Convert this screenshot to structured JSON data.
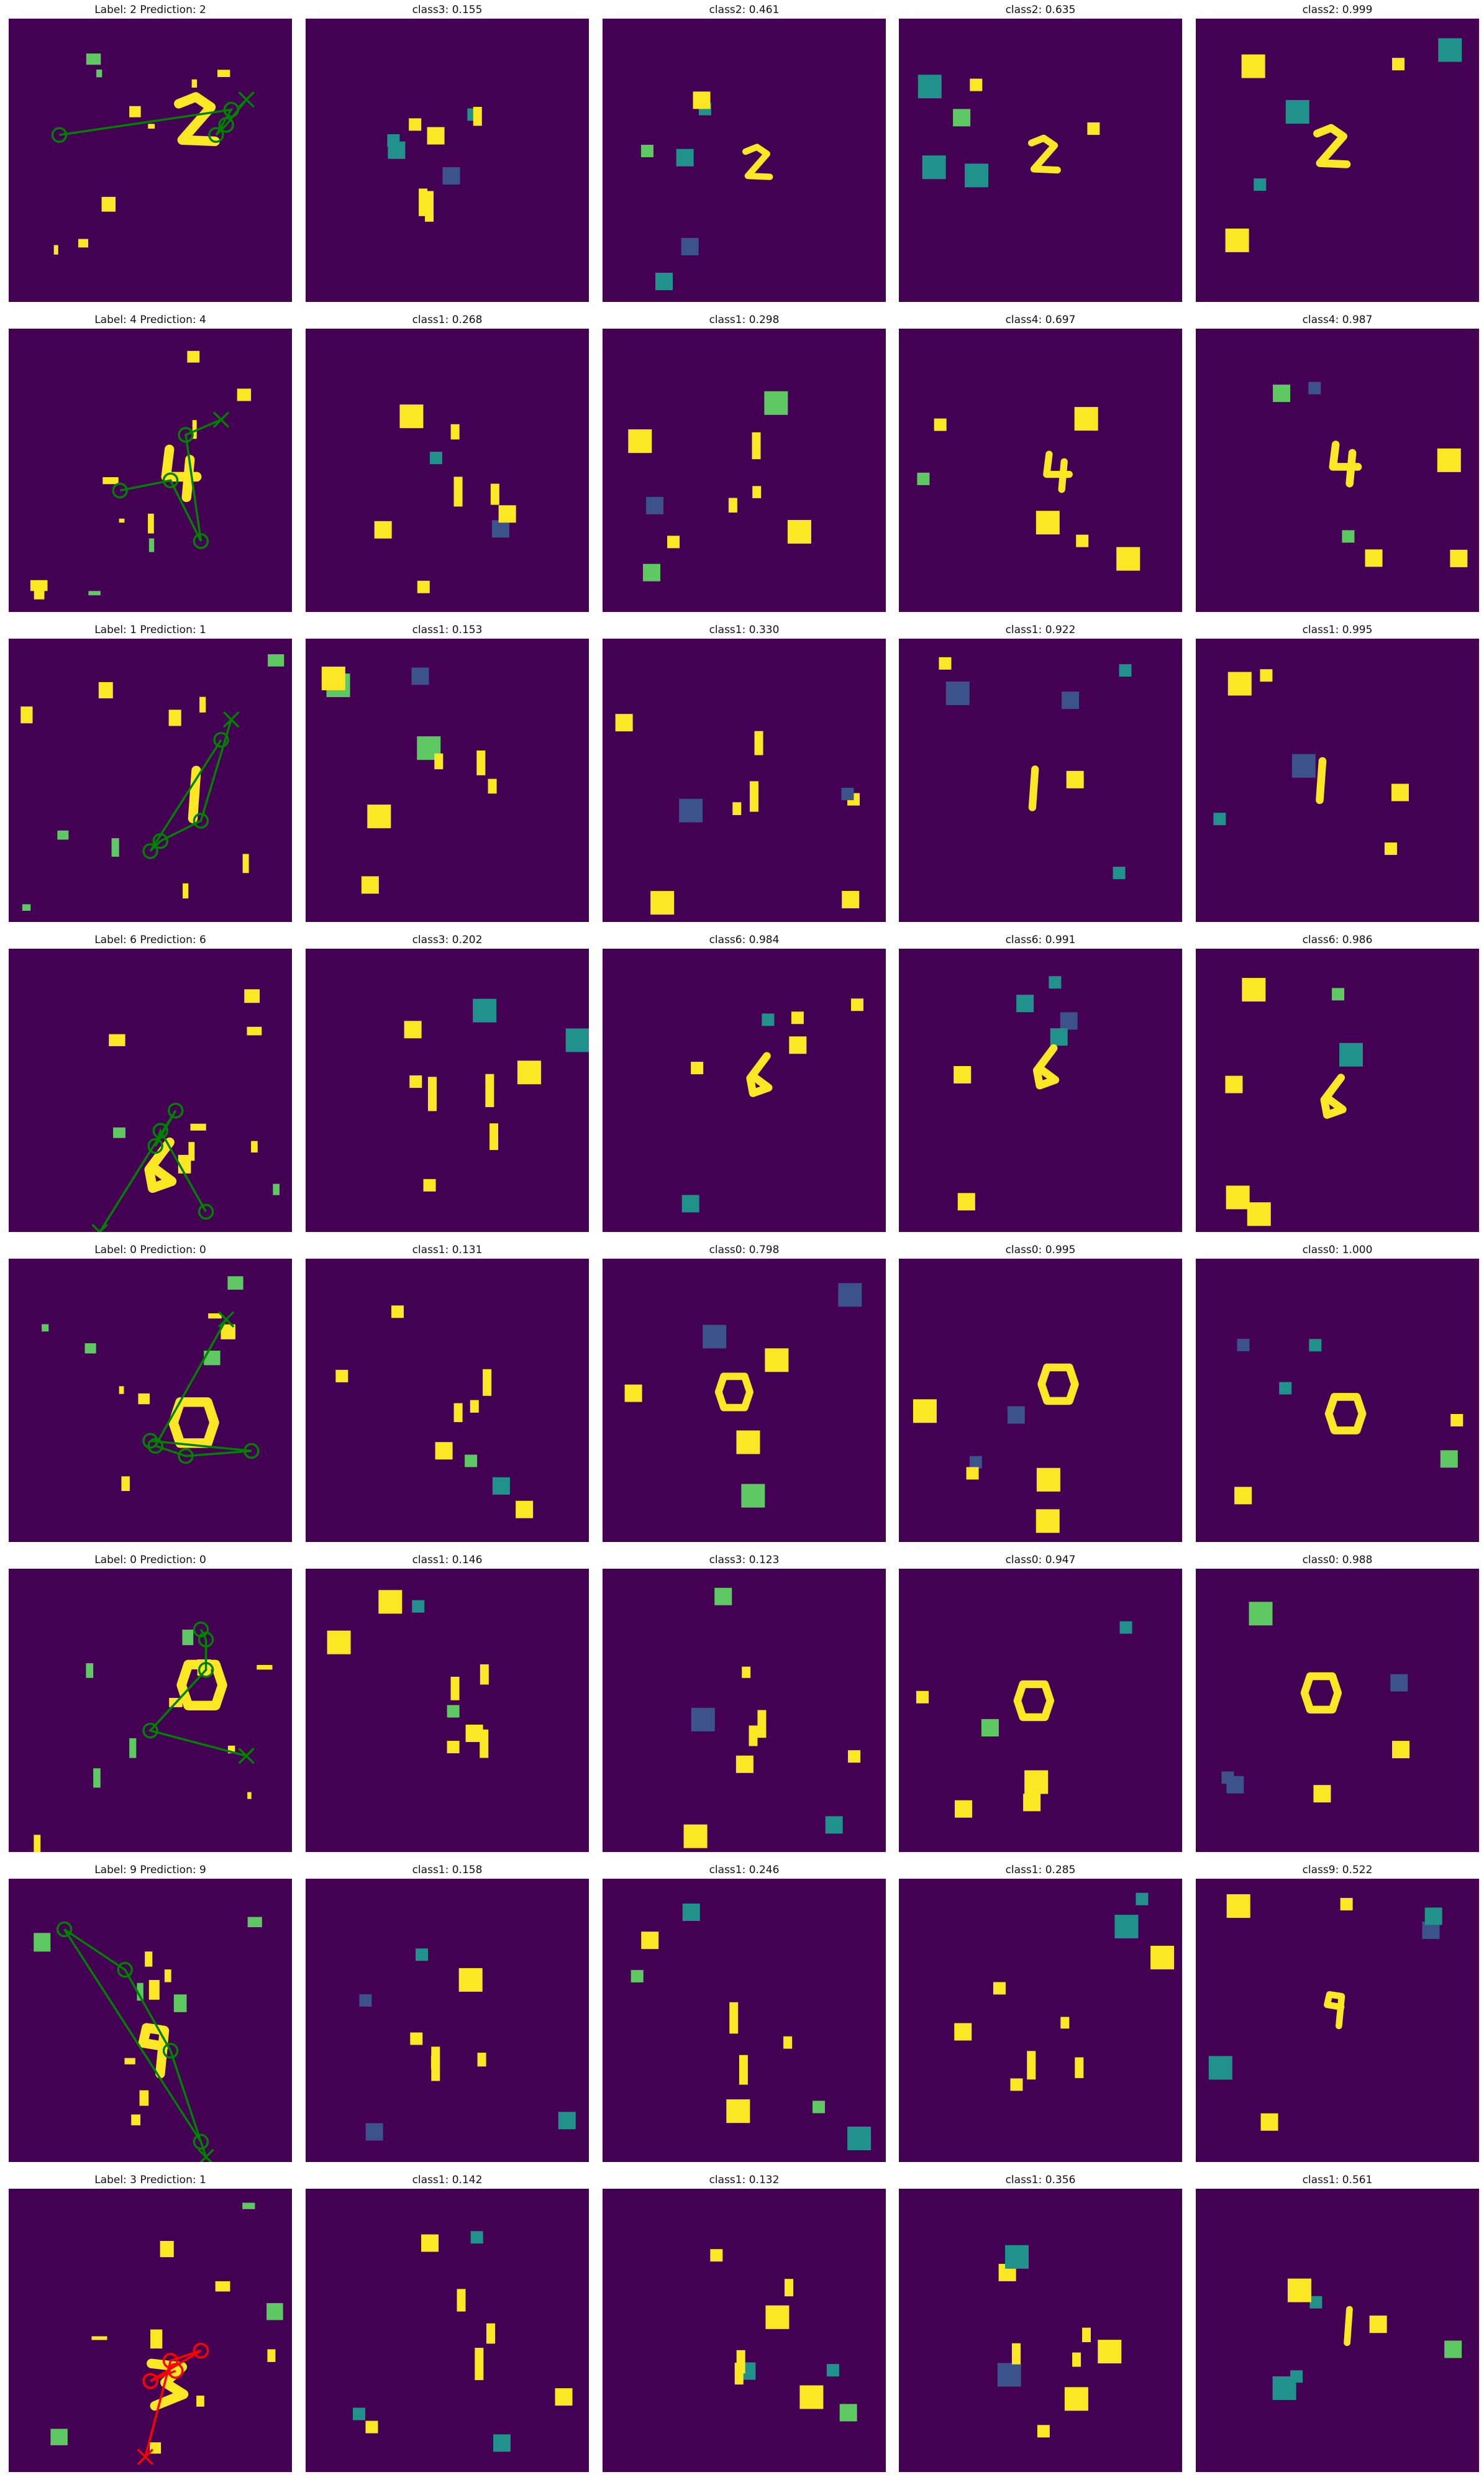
{
  "figure": {
    "background": "#ffffff",
    "colormap": {
      "low": "#440154",
      "mid_low": "#3b528b",
      "mid": "#21918c",
      "mid_high": "#5ec962",
      "high": "#fde725"
    },
    "path_colors": {
      "correct": "#008000",
      "incorrect": "#ff0000"
    }
  },
  "chart_data": {
    "type": "image-grid",
    "description_units": "glimpse images on 0-28 pixel grid; path points in same units",
    "rows": [
      {
        "label": 2,
        "prediction": 2,
        "correct": true,
        "title": "Label: 2 Prediction: 2",
        "path": [
          [
            23.5,
            8.0
          ],
          [
            21.5,
            10.5
          ],
          [
            20.5,
            11.5
          ],
          [
            22.0,
            9.0
          ],
          [
            5.0,
            11.5
          ]
        ],
        "glimpses": [
          {
            "title": "class3: 0.155",
            "cls": "class3",
            "prob": 0.155
          },
          {
            "title": "class2: 0.461",
            "cls": "class2",
            "prob": 0.461
          },
          {
            "title": "class2: 0.635",
            "cls": "class2",
            "prob": 0.635
          },
          {
            "title": "class2: 0.999",
            "cls": "class2",
            "prob": 0.999
          }
        ]
      },
      {
        "label": 4,
        "prediction": 4,
        "correct": true,
        "title": "Label: 4 Prediction: 4",
        "path": [
          [
            21.0,
            9.0
          ],
          [
            17.5,
            10.5
          ],
          [
            19.0,
            21.0
          ],
          [
            16.0,
            15.0
          ],
          [
            11.0,
            16.0
          ]
        ],
        "glimpses": [
          {
            "title": "class1: 0.268",
            "cls": "class1",
            "prob": 0.268
          },
          {
            "title": "class1: 0.298",
            "cls": "class1",
            "prob": 0.298
          },
          {
            "title": "class4: 0.697",
            "cls": "class4",
            "prob": 0.697
          },
          {
            "title": "class4: 0.987",
            "cls": "class4",
            "prob": 0.987
          }
        ]
      },
      {
        "label": 1,
        "prediction": 1,
        "correct": true,
        "title": "Label: 1 Prediction: 1",
        "path": [
          [
            22.0,
            8.0
          ],
          [
            19.0,
            18.0
          ],
          [
            15.0,
            20.0
          ],
          [
            14.0,
            21.0
          ],
          [
            21.0,
            10.0
          ]
        ],
        "glimpses": [
          {
            "title": "class1: 0.153",
            "cls": "class1",
            "prob": 0.153
          },
          {
            "title": "class1: 0.330",
            "cls": "class1",
            "prob": 0.33
          },
          {
            "title": "class1: 0.922",
            "cls": "class1",
            "prob": 0.922
          },
          {
            "title": "class1: 0.995",
            "cls": "class1",
            "prob": 0.995
          }
        ]
      },
      {
        "label": 6,
        "prediction": 6,
        "correct": true,
        "title": "Label: 6 Prediction: 6",
        "path": [
          [
            9.0,
            28.0
          ],
          [
            16.5,
            16.0
          ],
          [
            14.5,
            19.5
          ],
          [
            15.0,
            18.0
          ],
          [
            19.5,
            26.0
          ]
        ],
        "glimpses": [
          {
            "title": "class3: 0.202",
            "cls": "class3",
            "prob": 0.202
          },
          {
            "title": "class6: 0.984",
            "cls": "class6",
            "prob": 0.984
          },
          {
            "title": "class6: 0.991",
            "cls": "class6",
            "prob": 0.991
          },
          {
            "title": "class6: 0.986",
            "cls": "class6",
            "prob": 0.986
          }
        ]
      },
      {
        "label": 0,
        "prediction": 0,
        "correct": true,
        "title": "Label: 0 Prediction: 0",
        "path": [
          [
            21.5,
            6.0
          ],
          [
            14.5,
            18.5
          ],
          [
            17.5,
            19.5
          ],
          [
            24.0,
            19.0
          ],
          [
            14.0,
            18.0
          ]
        ],
        "glimpses": [
          {
            "title": "class1: 0.131",
            "cls": "class1",
            "prob": 0.131
          },
          {
            "title": "class0: 0.798",
            "cls": "class0",
            "prob": 0.798
          },
          {
            "title": "class0: 0.995",
            "cls": "class0",
            "prob": 0.995
          },
          {
            "title": "class0: 1.000",
            "cls": "class0",
            "prob": 1.0
          }
        ]
      },
      {
        "label": 0,
        "prediction": 0,
        "correct": true,
        "title": "Label: 0 Prediction: 0",
        "path": [
          [
            23.5,
            18.5
          ],
          [
            14.0,
            16.0
          ],
          [
            19.5,
            10.0
          ],
          [
            19.5,
            7.0
          ],
          [
            19.0,
            6.0
          ]
        ],
        "glimpses": [
          {
            "title": "class1: 0.146",
            "cls": "class1",
            "prob": 0.146
          },
          {
            "title": "class3: 0.123",
            "cls": "class3",
            "prob": 0.123
          },
          {
            "title": "class0: 0.947",
            "cls": "class0",
            "prob": 0.947
          },
          {
            "title": "class0: 0.988",
            "cls": "class0",
            "prob": 0.988
          }
        ]
      },
      {
        "label": 9,
        "prediction": 9,
        "correct": true,
        "title": "Label: 9 Prediction: 9",
        "path": [
          [
            19.5,
            27.5
          ],
          [
            16.0,
            17.0
          ],
          [
            11.5,
            9.0
          ],
          [
            5.5,
            5.0
          ],
          [
            19.0,
            26.0
          ]
        ],
        "glimpses": [
          {
            "title": "class1: 0.158",
            "cls": "class1",
            "prob": 0.158
          },
          {
            "title": "class1: 0.246",
            "cls": "class1",
            "prob": 0.246
          },
          {
            "title": "class1: 0.285",
            "cls": "class1",
            "prob": 0.285
          },
          {
            "title": "class9: 0.522",
            "cls": "class9",
            "prob": 0.522
          }
        ]
      },
      {
        "label": 3,
        "prediction": 1,
        "correct": false,
        "title": "Label: 3 Prediction: 1",
        "path": [
          [
            13.5,
            26.5
          ],
          [
            16.0,
            17.0
          ],
          [
            19.0,
            16.0
          ],
          [
            14.0,
            19.0
          ],
          [
            16.5,
            18.0
          ]
        ],
        "glimpses": [
          {
            "title": "class1: 0.142",
            "cls": "class1",
            "prob": 0.142
          },
          {
            "title": "class1: 0.132",
            "cls": "class1",
            "prob": 0.132
          },
          {
            "title": "class1: 0.356",
            "cls": "class1",
            "prob": 0.356
          },
          {
            "title": "class1: 0.561",
            "cls": "class1",
            "prob": 0.561
          }
        ]
      }
    ]
  }
}
